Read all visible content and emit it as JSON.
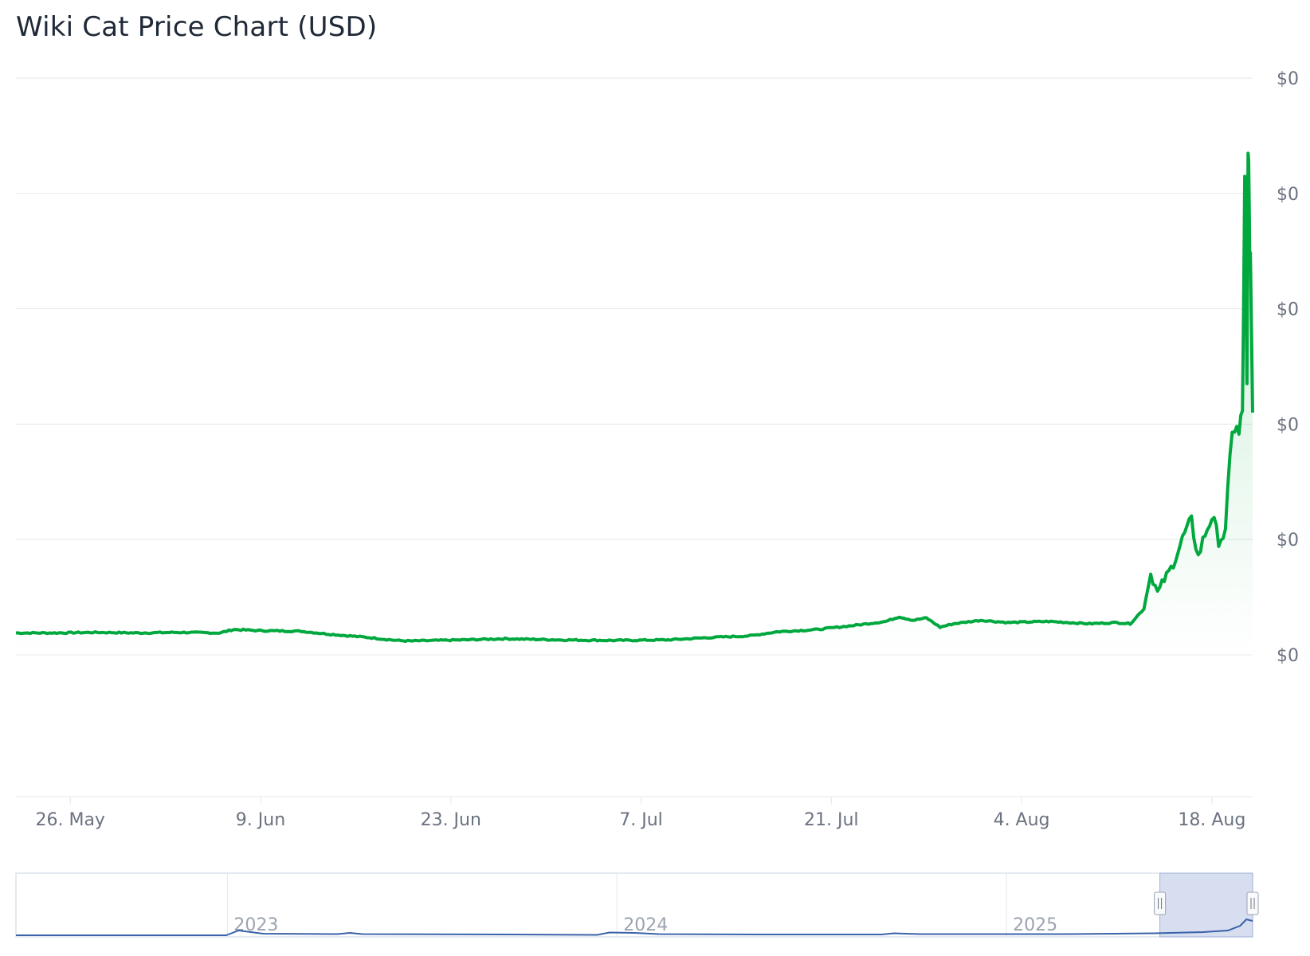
{
  "chart_data": {
    "type": "area",
    "title": "Wiki Cat Price Chart (USD)",
    "y_tick_labels": [
      "$0",
      "$0",
      "$0",
      "$0",
      "$0",
      "$0"
    ],
    "x_tick_labels": [
      "26. May",
      "9. Jun",
      "23. Jun",
      "7. Jul",
      "21. Jul",
      "4. Aug",
      "18. Aug"
    ],
    "x_start": "2025-05-22",
    "x_end": "2025-08-21",
    "y_scale_note": "relative price, 0 = lowest gridline, 5 = highest gridline",
    "ylim": [
      0,
      5
    ],
    "series": [
      {
        "color": "#00a83e",
        "points": [
          [
            "2025-05-22",
            0.19
          ],
          [
            "2025-05-25",
            0.19
          ],
          [
            "2025-05-28",
            0.195
          ],
          [
            "2025-05-31",
            0.19
          ],
          [
            "2025-06-03",
            0.195
          ],
          [
            "2025-06-06",
            0.19
          ],
          [
            "2025-06-07",
            0.22
          ],
          [
            "2025-06-09",
            0.21
          ],
          [
            "2025-06-12",
            0.205
          ],
          [
            "2025-06-14",
            0.18
          ],
          [
            "2025-06-17",
            0.15
          ],
          [
            "2025-06-19",
            0.125
          ],
          [
            "2025-06-20",
            0.12
          ],
          [
            "2025-06-24",
            0.13
          ],
          [
            "2025-06-27",
            0.14
          ],
          [
            "2025-07-01",
            0.13
          ],
          [
            "2025-07-05",
            0.125
          ],
          [
            "2025-07-09",
            0.13
          ],
          [
            "2025-07-12",
            0.15
          ],
          [
            "2025-07-15",
            0.165
          ],
          [
            "2025-07-17",
            0.2
          ],
          [
            "2025-07-20",
            0.22
          ],
          [
            "2025-07-23",
            0.26
          ],
          [
            "2025-07-25",
            0.29
          ],
          [
            "2025-07-26",
            0.33
          ],
          [
            "2025-07-27",
            0.3
          ],
          [
            "2025-07-28",
            0.32
          ],
          [
            "2025-07-29",
            0.24
          ],
          [
            "2025-07-30",
            0.27
          ],
          [
            "2025-08-01",
            0.3
          ],
          [
            "2025-08-03",
            0.28
          ],
          [
            "2025-08-06",
            0.29
          ],
          [
            "2025-08-09",
            0.27
          ],
          [
            "2025-08-11",
            0.28
          ],
          [
            "2025-08-12",
            0.27
          ],
          [
            "2025-08-13",
            0.4
          ],
          [
            "2025-08-13T12",
            0.7
          ],
          [
            "2025-08-14",
            0.55
          ],
          [
            "2025-08-15",
            0.75
          ],
          [
            "2025-08-16",
            1.05
          ],
          [
            "2025-08-16T12",
            1.15
          ],
          [
            "2025-08-17",
            0.85
          ],
          [
            "2025-08-17T12",
            1.05
          ],
          [
            "2025-08-18",
            1.2
          ],
          [
            "2025-08-18T12",
            1.0
          ],
          [
            "2025-08-19",
            1.05
          ],
          [
            "2025-08-19T12",
            2.0
          ],
          [
            "2025-08-20",
            1.9
          ],
          [
            "2025-08-20T06",
            2.1
          ],
          [
            "2025-08-20T10",
            4.0
          ],
          [
            "2025-08-20T12",
            3.3
          ],
          [
            "2025-08-20T14",
            2.3
          ],
          [
            "2025-08-20T16",
            4.6
          ],
          [
            "2025-08-20T18",
            3.7
          ],
          [
            "2025-08-20T20",
            3.5
          ],
          [
            "2025-08-21",
            2.1
          ]
        ]
      }
    ],
    "navigator": {
      "year_labels": [
        "2023",
        "2024",
        "2025"
      ],
      "series_color": "#3a62a8",
      "selection_color": "#c9d3ea",
      "points": [
        [
          0.0,
          0.0
        ],
        [
          0.17,
          0.0
        ],
        [
          0.18,
          0.6
        ],
        [
          0.19,
          0.4
        ],
        [
          0.2,
          0.2
        ],
        [
          0.26,
          0.15
        ],
        [
          0.27,
          0.3
        ],
        [
          0.28,
          0.15
        ],
        [
          0.4,
          0.1
        ],
        [
          0.47,
          0.05
        ],
        [
          0.48,
          0.35
        ],
        [
          0.5,
          0.3
        ],
        [
          0.52,
          0.15
        ],
        [
          0.6,
          0.1
        ],
        [
          0.7,
          0.1
        ],
        [
          0.71,
          0.25
        ],
        [
          0.73,
          0.15
        ],
        [
          0.85,
          0.15
        ],
        [
          0.92,
          0.25
        ],
        [
          0.96,
          0.4
        ],
        [
          0.98,
          0.6
        ],
        [
          0.99,
          1.2
        ],
        [
          0.995,
          2.0
        ],
        [
          1.0,
          1.8
        ]
      ],
      "selection_range": [
        0.925,
        1.0
      ]
    }
  }
}
